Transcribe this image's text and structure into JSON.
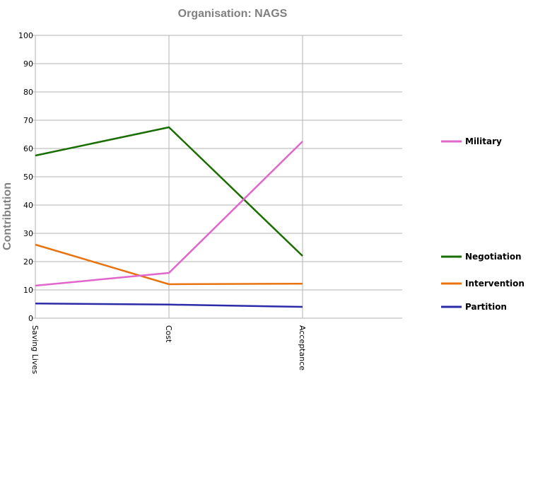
{
  "chart_data": {
    "type": "line",
    "title": "Organisation: NAGS",
    "xlabel": "",
    "ylabel": "Contribution",
    "categories": [
      "Saving Lives",
      "Cost",
      "Acceptance"
    ],
    "ylim": [
      0,
      100
    ],
    "yticks": [
      "0",
      "10",
      "20",
      "30",
      "40",
      "50",
      "60",
      "70",
      "80",
      "90",
      "100"
    ],
    "grid": true,
    "legend_position": "right",
    "series": [
      {
        "name": "Military",
        "color": "#e066cc",
        "values": [
          11.5,
          16,
          62.5
        ]
      },
      {
        "name": "Negotiation",
        "color": "#1a6e00",
        "values": [
          57.5,
          67.5,
          22
        ]
      },
      {
        "name": "Intervention",
        "color": "#e8730f",
        "values": [
          26,
          12,
          12.2
        ]
      },
      {
        "name": "Partition",
        "color": "#2b2ba8",
        "values": [
          5.2,
          4.8,
          4.0
        ]
      }
    ]
  }
}
